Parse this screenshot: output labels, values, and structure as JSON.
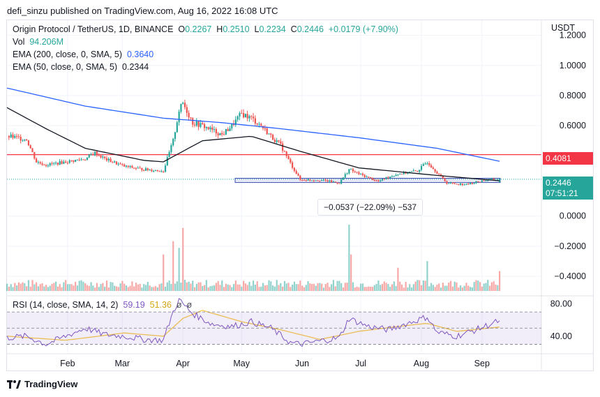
{
  "header": {
    "publish_line": "defi_sinzu published on TradingView.com, Aug 16, 2022 16:08 UTC"
  },
  "legend": {
    "symbol": "Origin Protocol / TetherUS, 1D, BINANCE",
    "open_label": "O",
    "open": "0.2267",
    "high_label": "H",
    "high": "0.2510",
    "low_label": "L",
    "low": "0.2234",
    "close_label": "C",
    "close": "0.2446",
    "change": "+0.0179 (+7.90%)",
    "vol_label": "Vol",
    "vol": "94.206M",
    "ema200_label": "EMA (200, close, 0, SMA, 5)",
    "ema200": "0.3640",
    "ema50_label": "EMA (50, close, 0, SMA, 5)",
    "ema50": "0.2344",
    "rsi_label": "RSI (14, close, SMA, 14, 2)",
    "rsi": "59.19",
    "rsi_ma": "51.36",
    "rsi_extra1": "ø",
    "rsi_extra2": "ø"
  },
  "price_tags": {
    "resistance": "0.4081",
    "last": "0.2446",
    "countdown": "07:51:21"
  },
  "measure": {
    "text": "−0.0537 (−22.09%) −537"
  },
  "footer": {
    "brand": "TradingView"
  },
  "colors": {
    "up": "#26a69a",
    "down": "#ef5350",
    "ema200": "#2962ff",
    "ema50": "#131722",
    "rsi": "#7e57c2",
    "rsi_ma": "#f7c948",
    "resistance": "#f23645",
    "box": "#3f51b5"
  },
  "chart_data": {
    "type": "candlestick",
    "price_axis": {
      "label": "USDT",
      "ticks": [
        "1.2000",
        "1.0000",
        "0.8000",
        "0.6000",
        "0.0000",
        "−0.2000",
        "−0.4000"
      ],
      "ylim": [
        -0.52,
        1.3
      ]
    },
    "rsi_axis": {
      "ticks": [
        "80.00",
        "40.00"
      ],
      "ylim": [
        20,
        90
      ],
      "band": [
        30,
        70
      ],
      "mid": 50
    },
    "x_ticks": [
      "Feb",
      "Mar",
      "Apr",
      "May",
      "Jun",
      "Jul",
      "Aug",
      "Sep"
    ],
    "resistance_level": 0.4081,
    "box_range": [
      0.223,
      0.251
    ],
    "approx_close_path": [
      [
        0,
        0.53
      ],
      [
        5,
        0.52
      ],
      [
        10,
        0.51
      ],
      [
        15,
        0.36
      ],
      [
        20,
        0.34
      ],
      [
        30,
        0.36
      ],
      [
        40,
        0.38
      ],
      [
        45,
        0.42
      ],
      [
        50,
        0.38
      ],
      [
        60,
        0.33
      ],
      [
        70,
        0.31
      ],
      [
        80,
        0.3
      ],
      [
        85,
        0.5
      ],
      [
        88,
        0.7
      ],
      [
        90,
        0.75
      ],
      [
        95,
        0.62
      ],
      [
        100,
        0.6
      ],
      [
        110,
        0.54
      ],
      [
        115,
        0.6
      ],
      [
        120,
        0.68
      ],
      [
        125,
        0.65
      ],
      [
        130,
        0.6
      ],
      [
        135,
        0.53
      ],
      [
        140,
        0.47
      ],
      [
        145,
        0.35
      ],
      [
        150,
        0.24
      ],
      [
        160,
        0.24
      ],
      [
        170,
        0.22
      ],
      [
        175,
        0.31
      ],
      [
        180,
        0.28
      ],
      [
        190,
        0.23
      ],
      [
        195,
        0.26
      ],
      [
        200,
        0.28
      ],
      [
        210,
        0.3
      ],
      [
        215,
        0.36
      ],
      [
        220,
        0.29
      ],
      [
        225,
        0.22
      ],
      [
        235,
        0.21
      ],
      [
        245,
        0.24
      ],
      [
        252,
        0.2446
      ]
    ],
    "ema200_path": [
      [
        0,
        0.85
      ],
      [
        40,
        0.73
      ],
      [
        80,
        0.65
      ],
      [
        110,
        0.62
      ],
      [
        140,
        0.58
      ],
      [
        180,
        0.52
      ],
      [
        220,
        0.45
      ],
      [
        252,
        0.364
      ]
    ],
    "ema50_path": [
      [
        0,
        0.72
      ],
      [
        20,
        0.58
      ],
      [
        40,
        0.45
      ],
      [
        70,
        0.37
      ],
      [
        80,
        0.36
      ],
      [
        100,
        0.5
      ],
      [
        125,
        0.53
      ],
      [
        150,
        0.43
      ],
      [
        180,
        0.32
      ],
      [
        220,
        0.27
      ],
      [
        252,
        0.2344
      ]
    ],
    "rsi_path": [
      [
        0,
        38
      ],
      [
        10,
        40
      ],
      [
        20,
        30
      ],
      [
        30,
        40
      ],
      [
        40,
        50
      ],
      [
        50,
        42
      ],
      [
        60,
        40
      ],
      [
        70,
        36
      ],
      [
        80,
        35
      ],
      [
        85,
        70
      ],
      [
        88,
        85
      ],
      [
        95,
        68
      ],
      [
        105,
        55
      ],
      [
        115,
        52
      ],
      [
        125,
        58
      ],
      [
        135,
        50
      ],
      [
        145,
        32
      ],
      [
        150,
        30
      ],
      [
        160,
        34
      ],
      [
        170,
        38
      ],
      [
        175,
        62
      ],
      [
        185,
        52
      ],
      [
        195,
        48
      ],
      [
        210,
        60
      ],
      [
        215,
        64
      ],
      [
        220,
        45
      ],
      [
        230,
        40
      ],
      [
        240,
        48
      ],
      [
        252,
        59.19
      ]
    ],
    "rsi_ma_path": [
      [
        0,
        40
      ],
      [
        30,
        35
      ],
      [
        60,
        44
      ],
      [
        80,
        40
      ],
      [
        90,
        62
      ],
      [
        100,
        72
      ],
      [
        120,
        58
      ],
      [
        140,
        48
      ],
      [
        160,
        36
      ],
      [
        180,
        46
      ],
      [
        200,
        52
      ],
      [
        215,
        56
      ],
      [
        230,
        46
      ],
      [
        252,
        51.36
      ]
    ],
    "volume_spikes": [
      [
        80,
        0.55
      ],
      [
        85,
        0.75
      ],
      [
        88,
        0.65
      ],
      [
        90,
        0.95
      ],
      [
        175,
        1.0
      ],
      [
        176,
        0.55
      ],
      [
        200,
        0.35
      ],
      [
        215,
        0.45
      ],
      [
        252,
        0.3
      ]
    ]
  }
}
